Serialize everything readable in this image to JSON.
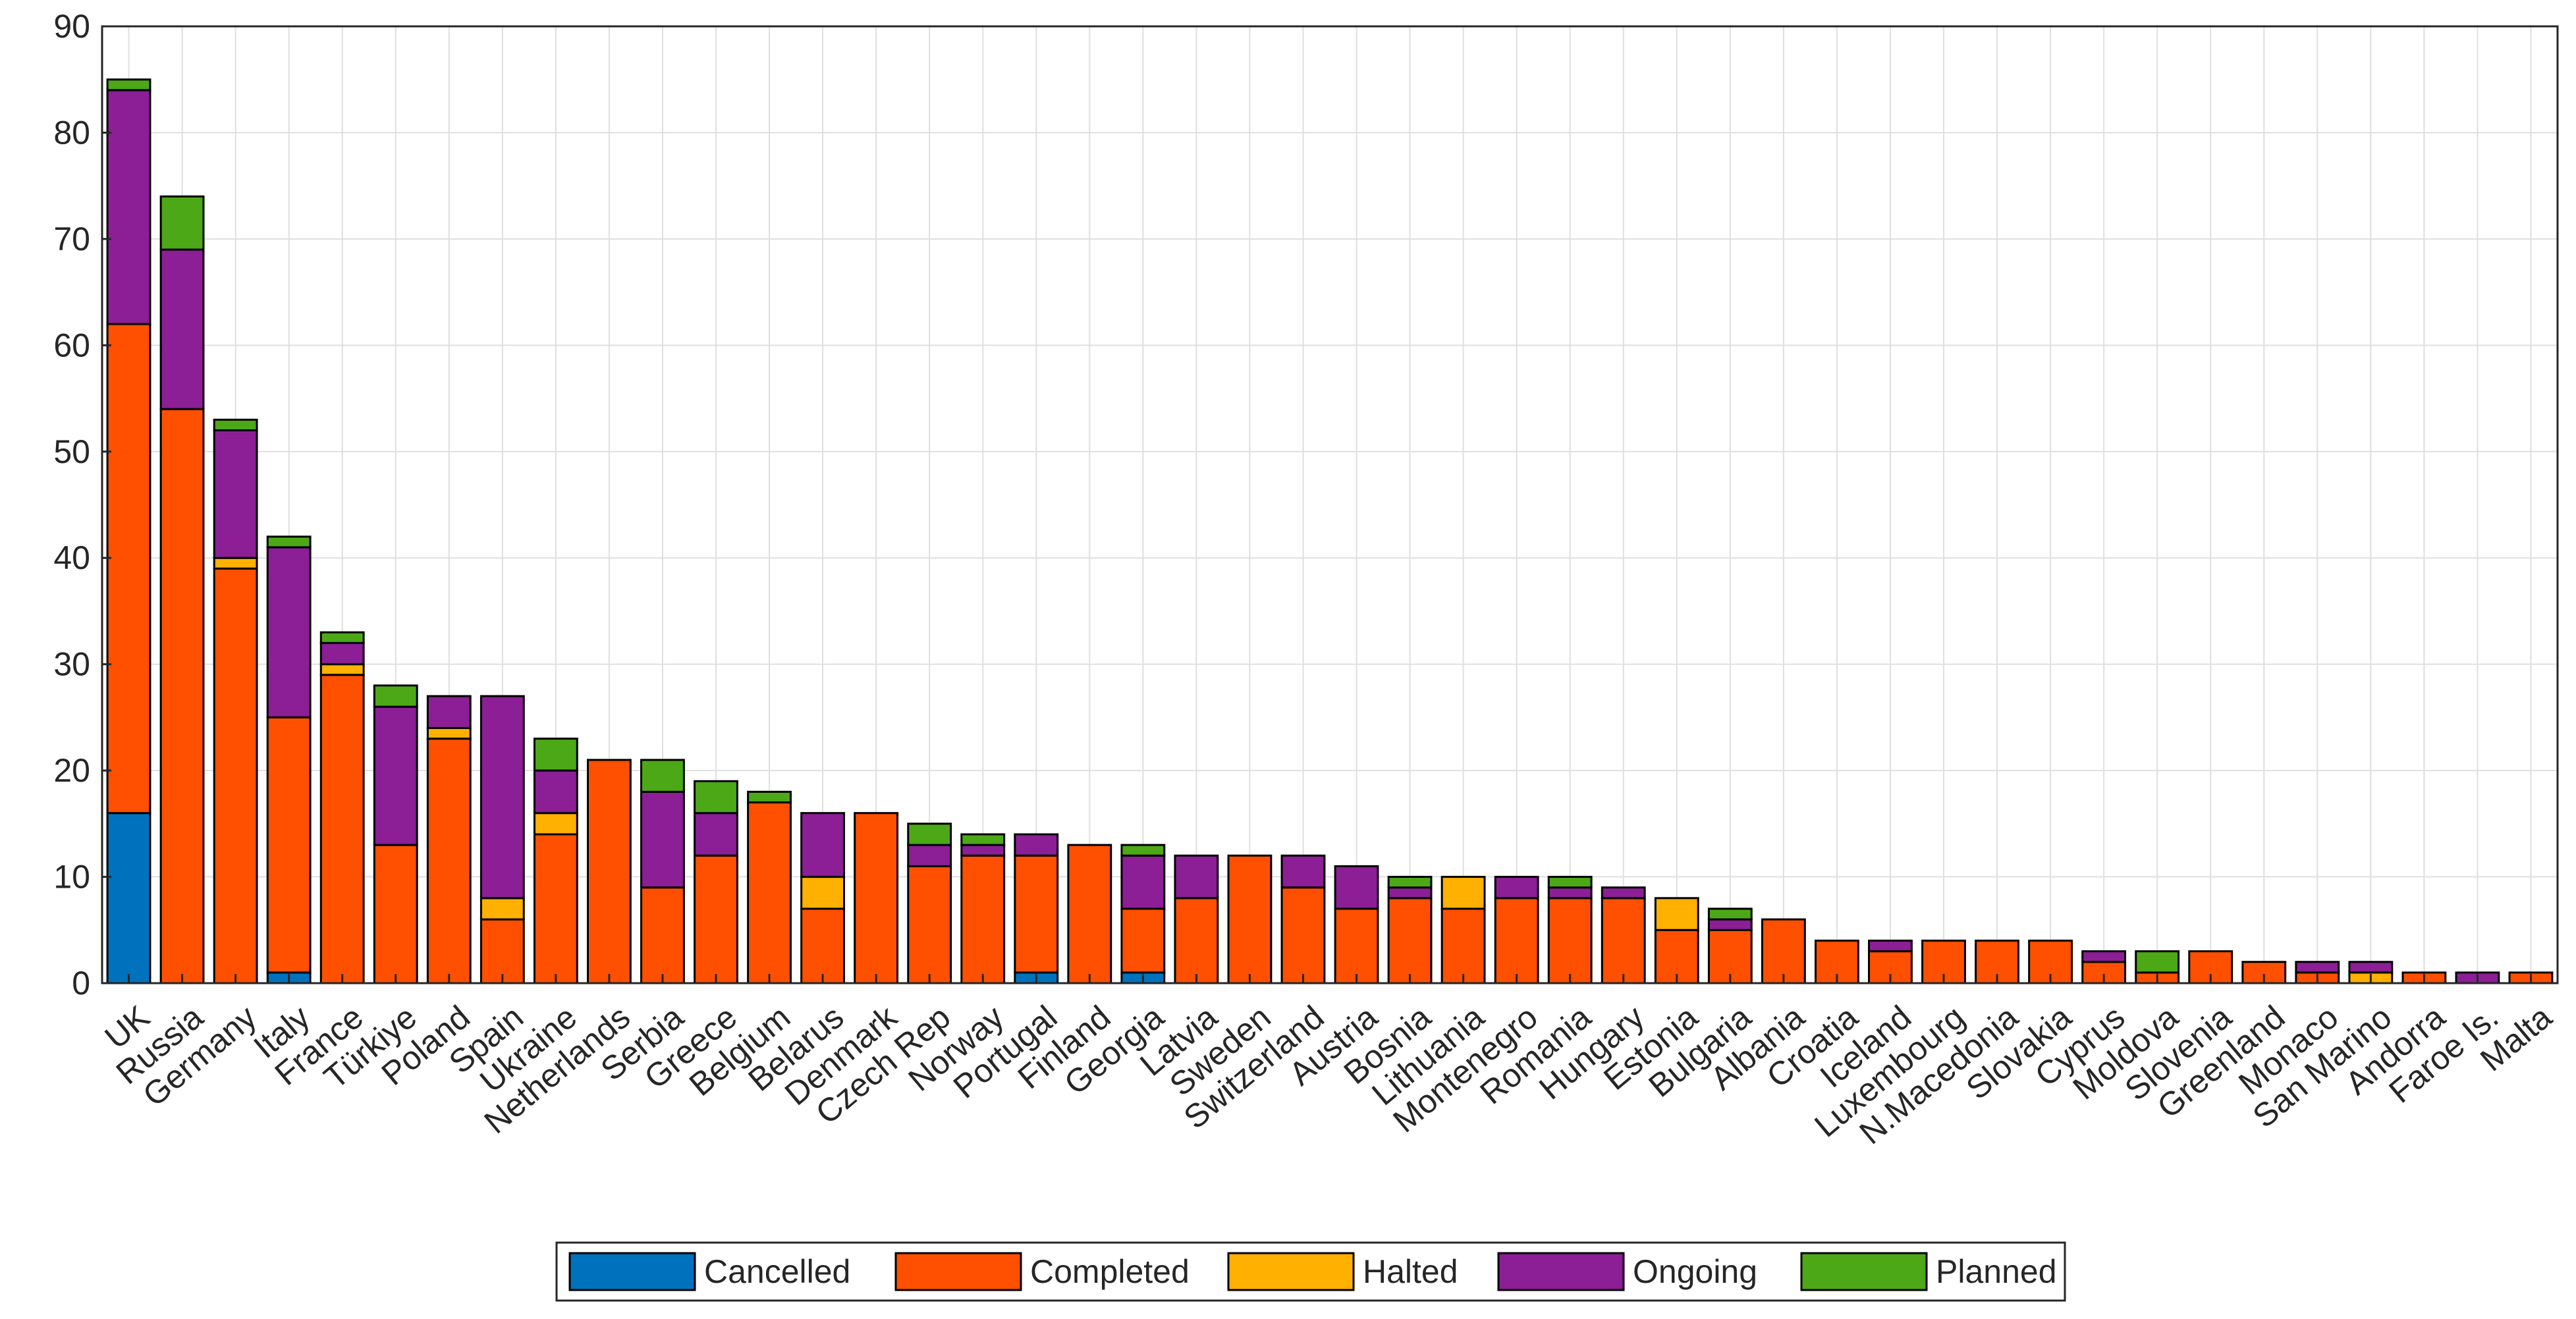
{
  "chart_data": {
    "type": "bar",
    "stacked": true,
    "title": "",
    "xlabel": "",
    "ylabel": "",
    "ylim": [
      0,
      90
    ],
    "yticks": [
      0,
      10,
      20,
      30,
      40,
      50,
      60,
      70,
      80,
      90
    ],
    "grid": true,
    "legend_position": "bottom-center",
    "categories": [
      "UK",
      "Russia",
      "Germany",
      "Italy",
      "France",
      "Türkiye",
      "Poland",
      "Spain",
      "Ukraine",
      "Netherlands",
      "Serbia",
      "Greece",
      "Belgium",
      "Belarus",
      "Denmark",
      "Czech Rep",
      "Norway",
      "Portugal",
      "Finland",
      "Georgia",
      "Latvia",
      "Sweden",
      "Switzerland",
      "Austria",
      "Bosnia",
      "Lithuania",
      "Montenegro",
      "Romania",
      "Hungary",
      "Estonia",
      "Bulgaria",
      "Albania",
      "Croatia",
      "Iceland",
      "Luxembourg",
      "N.Macedonia",
      "Slovakia",
      "Cyprus",
      "Moldova",
      "Slovenia",
      "Greenland",
      "Monaco",
      "San Marino",
      "Andorra",
      "Faroe Is.",
      "Malta"
    ],
    "series": [
      {
        "name": "Cancelled",
        "color": "#0072BD",
        "values": [
          16,
          0,
          0,
          1,
          0,
          0,
          0,
          0,
          0,
          0,
          0,
          0,
          0,
          0,
          0,
          0,
          0,
          1,
          0,
          1,
          0,
          0,
          0,
          0,
          0,
          0,
          0,
          0,
          0,
          0,
          0,
          0,
          0,
          0,
          0,
          0,
          0,
          0,
          0,
          0,
          0,
          0,
          0,
          0,
          0,
          0
        ]
      },
      {
        "name": "Completed",
        "color": "#FF4F00",
        "values": [
          46,
          54,
          39,
          24,
          29,
          13,
          23,
          6,
          14,
          21,
          9,
          12,
          17,
          7,
          16,
          11,
          12,
          11,
          13,
          6,
          8,
          12,
          9,
          7,
          8,
          7,
          8,
          8,
          8,
          5,
          5,
          6,
          4,
          3,
          4,
          4,
          4,
          2,
          1,
          3,
          2,
          1,
          0,
          1,
          0,
          1
        ]
      },
      {
        "name": "Halted",
        "color": "#FFB000",
        "values": [
          0,
          0,
          1,
          0,
          1,
          0,
          1,
          2,
          2,
          0,
          0,
          0,
          0,
          3,
          0,
          0,
          0,
          0,
          0,
          0,
          0,
          0,
          0,
          0,
          0,
          3,
          0,
          0,
          0,
          3,
          0,
          0,
          0,
          0,
          0,
          0,
          0,
          0,
          0,
          0,
          0,
          0,
          1,
          0,
          0,
          0
        ]
      },
      {
        "name": "Ongoing",
        "color": "#8C1E96",
        "values": [
          22,
          15,
          12,
          16,
          2,
          13,
          3,
          19,
          4,
          0,
          9,
          4,
          0,
          6,
          0,
          2,
          1,
          2,
          0,
          5,
          4,
          0,
          3,
          4,
          1,
          0,
          2,
          1,
          1,
          0,
          1,
          0,
          0,
          1,
          0,
          0,
          0,
          1,
          0,
          0,
          0,
          1,
          1,
          0,
          1,
          0
        ]
      },
      {
        "name": "Planned",
        "color": "#4CA816",
        "values": [
          1,
          5,
          1,
          1,
          1,
          2,
          0,
          0,
          3,
          0,
          3,
          3,
          1,
          0,
          0,
          2,
          1,
          0,
          0,
          1,
          0,
          0,
          0,
          0,
          1,
          0,
          0,
          1,
          0,
          0,
          1,
          0,
          0,
          0,
          0,
          0,
          0,
          0,
          2,
          0,
          0,
          0,
          0,
          0,
          0,
          0
        ]
      }
    ]
  }
}
